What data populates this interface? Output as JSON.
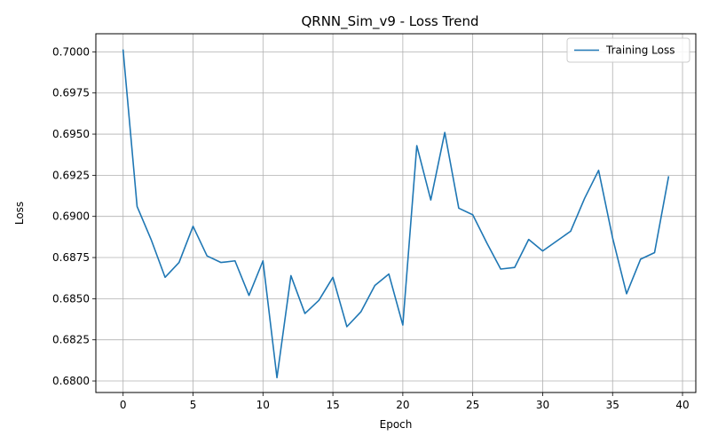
{
  "chart_data": {
    "type": "line",
    "title": "QRNN_Sim_v9 - Loss Trend",
    "xlabel": "Epoch",
    "ylabel": "Loss",
    "xlim": [
      -1.95,
      40.95
    ],
    "ylim": [
      0.6793,
      0.7011
    ],
    "xticks": [
      0,
      5,
      10,
      15,
      20,
      25,
      30,
      35,
      40
    ],
    "xtick_labels": [
      "0",
      "5",
      "10",
      "15",
      "20",
      "25",
      "30",
      "35",
      "40"
    ],
    "yticks": [
      0.68,
      0.6825,
      0.685,
      0.6875,
      0.69,
      0.6925,
      0.695,
      0.6975,
      0.7
    ],
    "ytick_labels": [
      "0.6800",
      "0.6825",
      "0.6850",
      "0.6875",
      "0.6900",
      "0.6925",
      "0.6950",
      "0.6975",
      "0.7000"
    ],
    "grid": true,
    "legend_position": "top-right",
    "series": [
      {
        "name": "Training Loss",
        "color": "#1f77b4",
        "x": [
          0,
          1,
          2,
          3,
          4,
          5,
          6,
          7,
          8,
          9,
          10,
          11,
          12,
          13,
          14,
          15,
          16,
          17,
          18,
          19,
          20,
          21,
          22,
          23,
          24,
          25,
          26,
          27,
          28,
          29,
          30,
          31,
          32,
          33,
          34,
          35,
          36,
          37,
          38,
          39
        ],
        "y": [
          0.7001,
          0.6906,
          0.6886,
          0.6863,
          0.6872,
          0.6894,
          0.6876,
          0.6872,
          0.6873,
          0.6852,
          0.6873,
          0.6802,
          0.6864,
          0.6841,
          0.6849,
          0.6863,
          0.6833,
          0.6842,
          0.6858,
          0.6865,
          0.6834,
          0.6943,
          0.691,
          0.6951,
          0.6905,
          0.6901,
          0.6884,
          0.6868,
          0.6869,
          0.6886,
          0.6879,
          0.6885,
          0.6891,
          0.6911,
          0.6928,
          0.6887,
          0.6853,
          0.6874,
          0.6878,
          0.6924
        ]
      }
    ]
  }
}
